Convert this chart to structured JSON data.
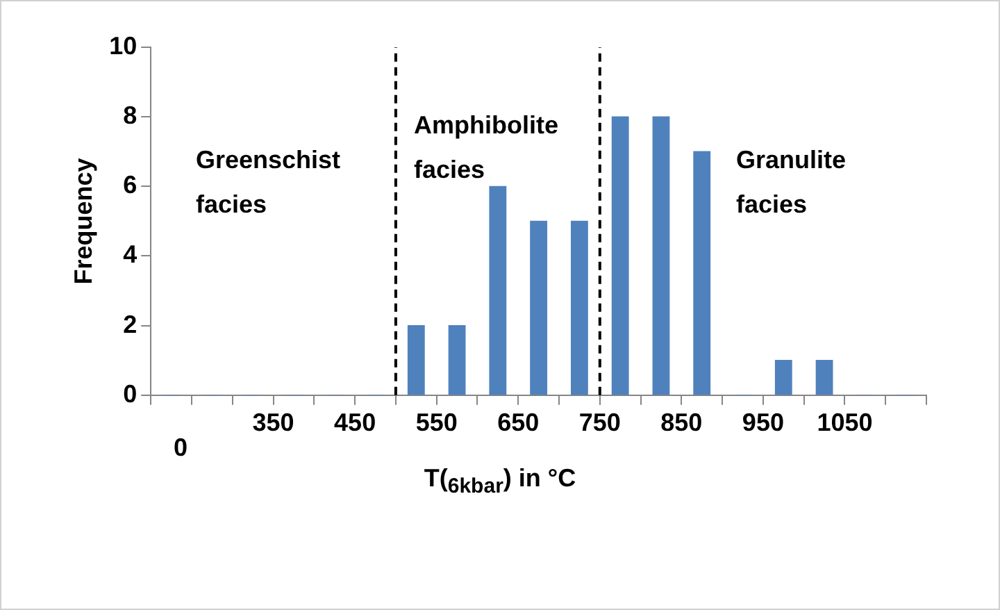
{
  "chart_data": {
    "type": "histogram",
    "xlabel": "T($_{6kbar}$) in °C",
    "ylabel": "Frequency",
    "bins": [
      200,
      250,
      300,
      350,
      400,
      450,
      500,
      550,
      600,
      650,
      700,
      750,
      800,
      850,
      900,
      950,
      1000,
      1050,
      1100,
      1150
    ],
    "values": [
      0,
      0,
      0,
      0,
      0,
      0,
      2,
      2,
      6,
      5,
      5,
      8,
      8,
      7,
      0,
      1,
      1,
      0,
      0
    ],
    "color": "#4f81bd",
    "xlim": [
      200,
      1150
    ],
    "xticks": [
      {
        "value": 200,
        "label": null
      },
      {
        "value": 250,
        "label": null
      },
      {
        "value": 300,
        "label": null
      },
      350,
      {
        "value": 400,
        "label": null
      },
      450,
      {
        "value": 500,
        "label": null
      },
      550,
      {
        "value": 600,
        "label": null
      },
      650,
      {
        "value": 700,
        "label": null
      },
      750,
      {
        "value": 800,
        "label": null
      },
      850,
      {
        "value": 900,
        "label": null
      },
      950,
      {
        "value": 1000,
        "label": null
      },
      1050,
      {
        "value": 1100,
        "label": null
      },
      {
        "value": 1150,
        "label": null
      }
    ],
    "ylim": [
      0,
      10
    ],
    "yticks": [
      0,
      2,
      4,
      6,
      8,
      10
    ],
    "grid": false,
    "legend": false,
    "ref_lines": [
      {
        "axis": "x",
        "value": 500,
        "color": "#000000",
        "line_style": "dashed"
      },
      {
        "axis": "x",
        "value": 750,
        "color": "#000000",
        "line_style": "dashed"
      }
    ],
    "annotations": [
      "Greenschist facies",
      "Amphibolite facies",
      "Granulite facies",
      "0"
    ]
  }
}
